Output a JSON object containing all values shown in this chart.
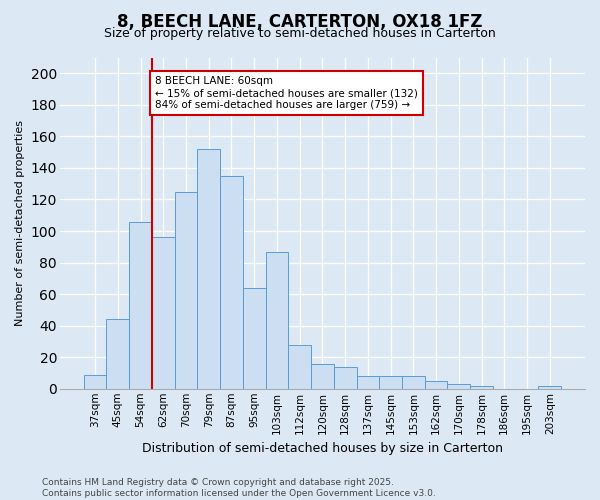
{
  "title1": "8, BEECH LANE, CARTERTON, OX18 1FZ",
  "title2": "Size of property relative to semi-detached houses in Carterton",
  "xlabel": "Distribution of semi-detached houses by size in Carterton",
  "ylabel": "Number of semi-detached properties",
  "categories": [
    "37sqm",
    "45sqm",
    "54sqm",
    "62sqm",
    "70sqm",
    "79sqm",
    "87sqm",
    "95sqm",
    "103sqm",
    "112sqm",
    "120sqm",
    "128sqm",
    "137sqm",
    "145sqm",
    "153sqm",
    "162sqm",
    "170sqm",
    "178sqm",
    "186sqm",
    "195sqm",
    "203sqm"
  ],
  "values": [
    9,
    44,
    106,
    96,
    125,
    152,
    135,
    64,
    87,
    28,
    16,
    14,
    8,
    8,
    8,
    5,
    3,
    2,
    0,
    0,
    2
  ],
  "bar_color": "#ccdff2",
  "bar_edge_color": "#5b9bd5",
  "vline_index": 3,
  "vline_color": "#cc0000",
  "annotation_text": "8 BEECH LANE: 60sqm\n← 15% of semi-detached houses are smaller (132)\n84% of semi-detached houses are larger (759) →",
  "annotation_box_color": "white",
  "annotation_edge_color": "#cc0000",
  "footnote": "Contains HM Land Registry data © Crown copyright and database right 2025.\nContains public sector information licensed under the Open Government Licence v3.0.",
  "ylim": [
    0,
    210
  ],
  "yticks": [
    0,
    20,
    40,
    60,
    80,
    100,
    120,
    140,
    160,
    180,
    200
  ],
  "background_color": "#dce9f5",
  "grid_color": "white",
  "title1_fontsize": 12,
  "title2_fontsize": 9,
  "ylabel_fontsize": 8,
  "xlabel_fontsize": 9,
  "tick_fontsize": 7.5,
  "footnote_fontsize": 6.5
}
